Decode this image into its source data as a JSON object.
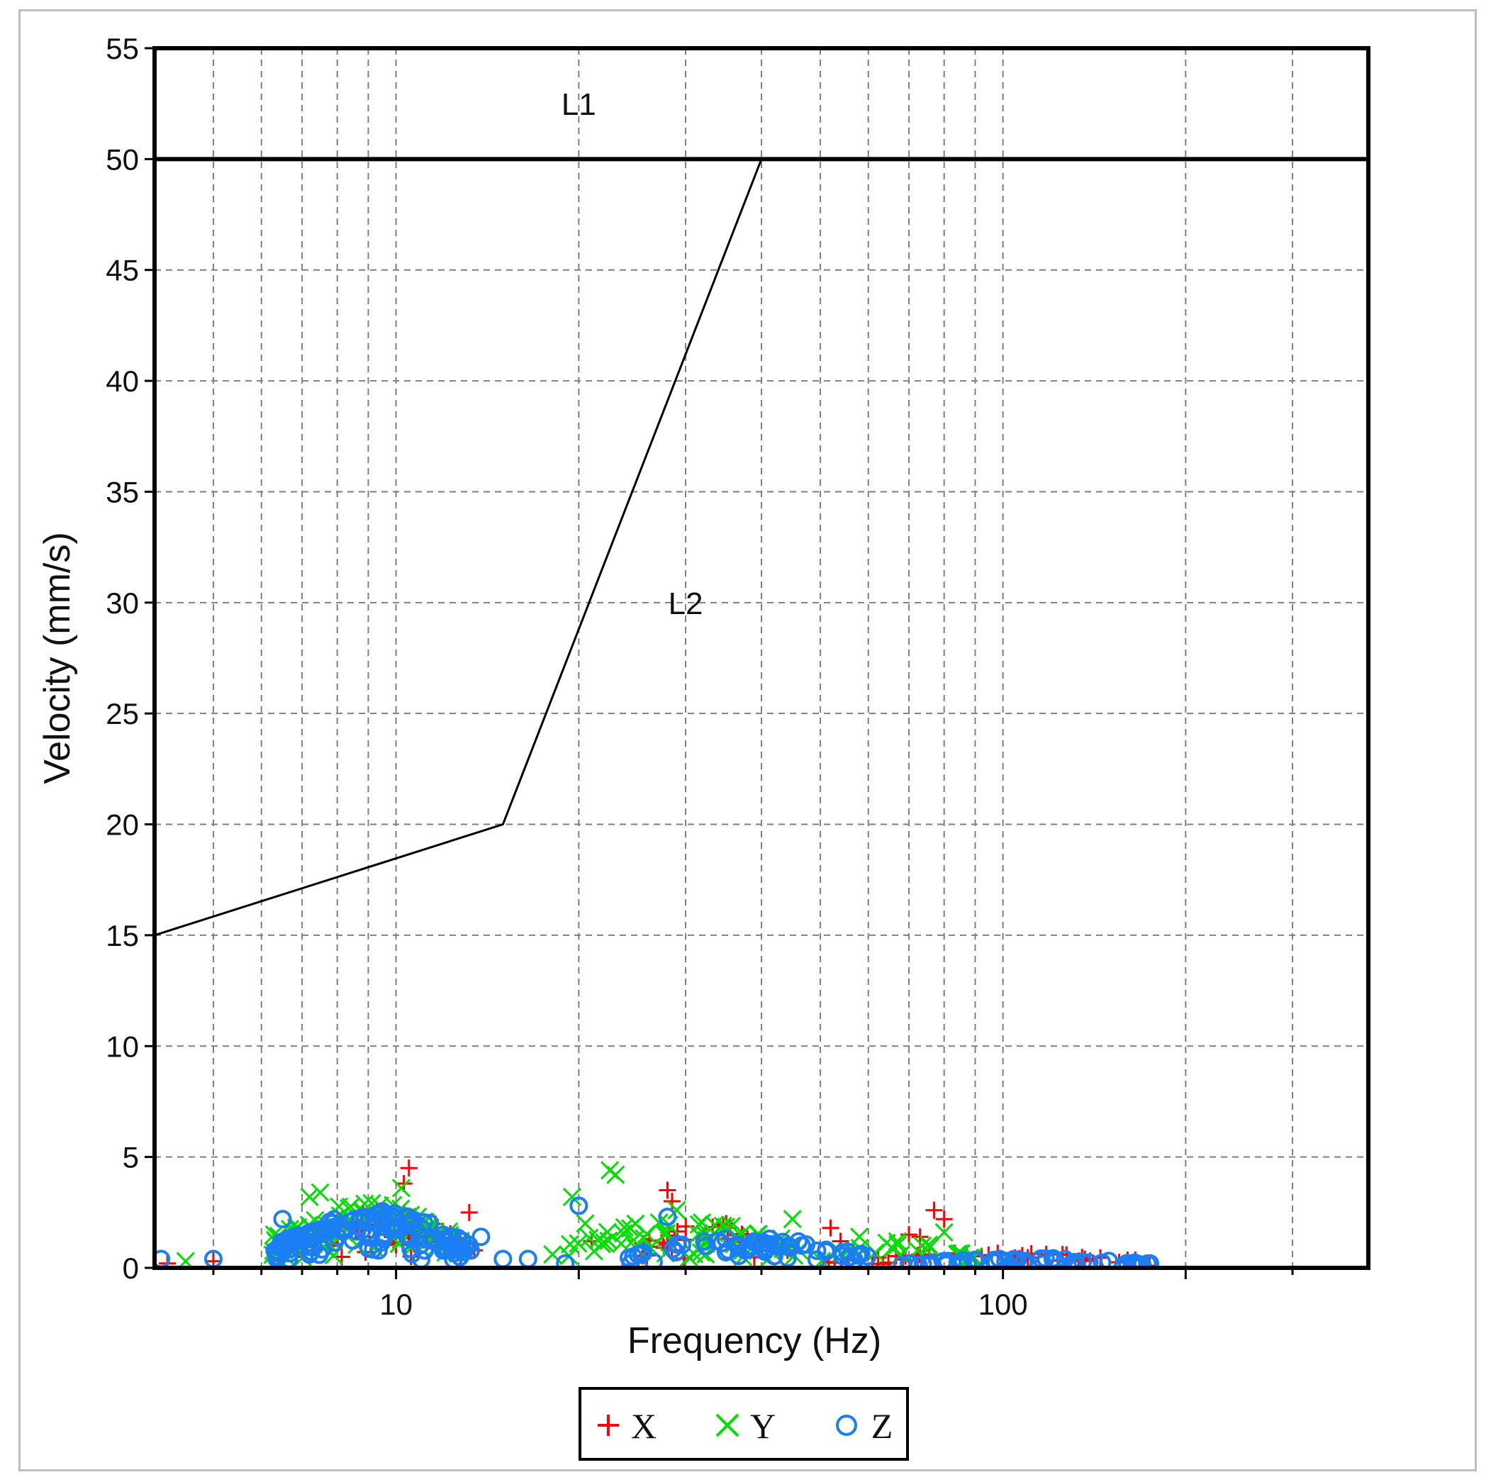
{
  "chart_data": {
    "type": "scatter",
    "xlabel": "Frequency (Hz)",
    "ylabel": "Velocity (mm/s)",
    "x_scale": "log",
    "xlim": [
      4,
      400
    ],
    "ylim": [
      0,
      55
    ],
    "x_ticks": [
      10,
      100
    ],
    "y_ticks": [
      0,
      5,
      10,
      15,
      20,
      25,
      30,
      35,
      40,
      45,
      50,
      55
    ],
    "grid": true,
    "legend_position": "bottom",
    "limit_lines": {
      "L1": {
        "points": [
          [
            4,
            50
          ],
          [
            400,
            50
          ]
        ]
      },
      "L2": {
        "points": [
          [
            4,
            15
          ],
          [
            15,
            20
          ],
          [
            40,
            50
          ]
        ]
      }
    },
    "region_labels": [
      {
        "text": "L1",
        "x": 20,
        "y": 52.5
      },
      {
        "text": "L2",
        "x": 30,
        "y": 30
      }
    ],
    "series": [
      {
        "name": "X",
        "marker": "+",
        "color": "#ff0000",
        "clusters": [
          {
            "x_range": [
              6.5,
              13.5
            ],
            "y_max": 2.6,
            "n": 70
          },
          {
            "x_range": [
              24,
              45
            ],
            "y_max": 2.0,
            "n": 30
          },
          {
            "x_range": [
              50,
              180
            ],
            "y_max": 0.7,
            "n": 40
          }
        ],
        "points": [
          [
            10.5,
            4.5
          ],
          [
            10.3,
            3.8
          ],
          [
            13.2,
            2.5
          ],
          [
            28,
            3.5
          ],
          [
            28.5,
            3.0
          ],
          [
            35,
            2.0
          ],
          [
            35.5,
            1.8
          ],
          [
            52,
            1.8
          ],
          [
            54,
            1.2
          ],
          [
            70,
            1.5
          ],
          [
            73,
            1.4
          ],
          [
            77,
            2.6
          ],
          [
            80,
            2.2
          ],
          [
            21,
            1.2
          ],
          [
            4.2,
            0.2
          ],
          [
            5,
            0.3
          ]
        ]
      },
      {
        "name": "Y",
        "marker": "x",
        "color": "#00e000",
        "clusters": [
          {
            "x_range": [
              6.2,
              13.0
            ],
            "y_max": 3.0,
            "n": 90
          },
          {
            "x_range": [
              18,
              48
            ],
            "y_max": 2.2,
            "n": 60
          },
          {
            "x_range": [
              50,
              90
            ],
            "y_max": 1.2,
            "n": 25
          }
        ],
        "points": [
          [
            7.2,
            3.2
          ],
          [
            7.5,
            3.4
          ],
          [
            10.2,
            3.6
          ],
          [
            22.5,
            4.4
          ],
          [
            23,
            4.2
          ],
          [
            19.5,
            3.2
          ],
          [
            20.5,
            2.0
          ],
          [
            29,
            2.6
          ],
          [
            45,
            2.2
          ],
          [
            58,
            1.4
          ],
          [
            80,
            1.6
          ],
          [
            6.3,
            1.5
          ],
          [
            4.5,
            0.3
          ]
        ]
      },
      {
        "name": "Z",
        "marker": "o",
        "color": "#1a7ff5",
        "clusters": [
          {
            "x_range": [
              6.3,
              13.5
            ],
            "y_max": 2.6,
            "n": 130
          },
          {
            "x_range": [
              24,
              60
            ],
            "y_max": 1.4,
            "n": 60
          },
          {
            "x_range": [
              68,
              180
            ],
            "y_max": 0.45,
            "n": 60
          }
        ],
        "points": [
          [
            6.5,
            2.2
          ],
          [
            13.8,
            1.4
          ],
          [
            20,
            2.8
          ],
          [
            28,
            2.3
          ],
          [
            4.1,
            0.4
          ],
          [
            5,
            0.4
          ],
          [
            15,
            0.4
          ],
          [
            16.5,
            0.4
          ],
          [
            19,
            0.2
          ]
        ]
      }
    ]
  }
}
